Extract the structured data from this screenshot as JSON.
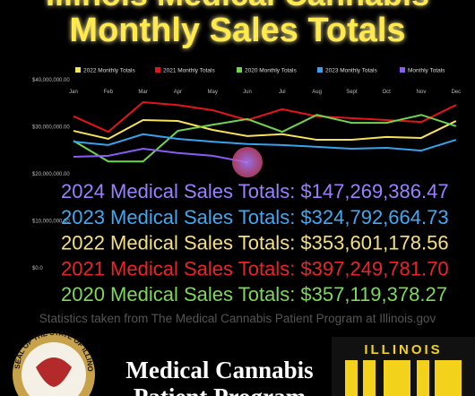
{
  "chart_data": {
    "type": "line",
    "title": "Illinois Medical Cannabis",
    "subtitle": "Monthly Sales Totals",
    "categories": [
      "Jan",
      "Feb",
      "Mar",
      "Apr",
      "May",
      "Jun",
      "Jul",
      "Aug",
      "Sept",
      "Oct",
      "Nov",
      "Dec"
    ],
    "series": [
      {
        "name": "2022 Monthly Totals",
        "color": "#f7e35a",
        "values": [
          29700000,
          28000000,
          32000000,
          31800000,
          29900000,
          28600000,
          29000000,
          27800000,
          27800000,
          28400000,
          28200000,
          31800000
        ]
      },
      {
        "name": "2021 Monthly Totals",
        "color": "#e5141b",
        "values": [
          32800000,
          29500000,
          35800000,
          35200000,
          34100000,
          32000000,
          34300000,
          32800000,
          32400000,
          32000000,
          31600000,
          35200000
        ]
      },
      {
        "name": "2020 Monthly Totals",
        "color": "#6fd44f",
        "values": [
          27600000,
          23200000,
          23200000,
          29700000,
          31000000,
          32200000,
          29500000,
          33100000,
          31400000,
          31400000,
          33100000,
          30700000
        ]
      },
      {
        "name": "2023 Monthly Totals",
        "color": "#36a3ec",
        "values": [
          27400000,
          26700000,
          29000000,
          28000000,
          27400000,
          26900000,
          26700000,
          26300000,
          25900000,
          26100000,
          25500000,
          27800000
        ]
      },
      {
        "name": "Monthly Totals",
        "color": "#8a5cf5",
        "values": [
          24200000,
          24400000,
          25900000,
          25000000,
          24400000,
          23000000,
          null,
          null,
          null,
          null,
          null,
          null
        ]
      }
    ],
    "ylim": [
      0,
      40000000
    ],
    "yticks": [
      {
        "value": 0,
        "label": "$0.0"
      },
      {
        "value": 10000000,
        "label": "$10,000,000.00"
      },
      {
        "value": 20000000,
        "label": "$20,000,000.00"
      },
      {
        "value": 30000000,
        "label": "$30,000,000.00"
      },
      {
        "value": 40000000,
        "label": "$40,000,000.00"
      }
    ],
    "grid": false,
    "legend": "top"
  },
  "totals": [
    {
      "text": "2024 Medical Sales Totals: $147,269,386.47",
      "color": "#9d7fff"
    },
    {
      "text": "2023 Medical Sales Totals: $324,792,664.73",
      "color": "#3fa9f5"
    },
    {
      "text": "2022 Medical Sales Totals: $353,601,178.56",
      "color": "#f5e07a"
    },
    {
      "text": "2021 Medical Sales Totals: $397,249,781.70",
      "color": "#e8262a"
    },
    {
      "text": "2020 Medical Sales Totals: $357,119,378.27",
      "color": "#7ed957"
    }
  ],
  "source": "Statistics taken from The Medical Cannabis Patient Program at Illinois.gov",
  "seal_text": "SEAL OF THE STATE OF ILLINOIS",
  "program": [
    "Medical Cannabis",
    "Patient Program"
  ],
  "state": "ILLINOIS"
}
